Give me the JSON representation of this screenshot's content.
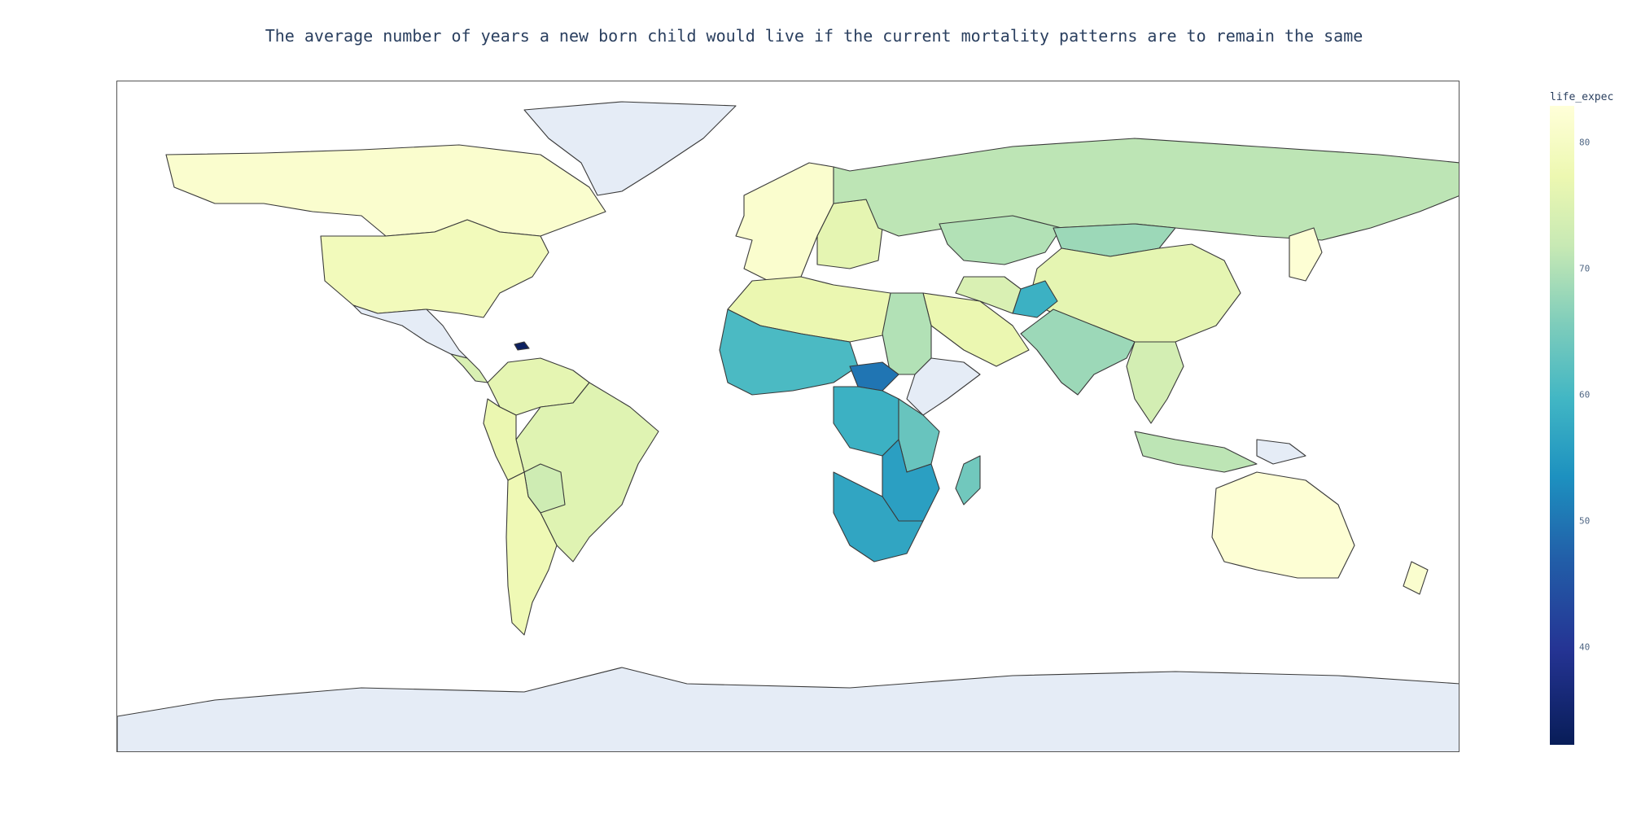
{
  "title": "The average number of years a new born child would live if the current mortality patterns are to remain the same",
  "colorbar": {
    "title": "life_expec",
    "ticks": [
      "80",
      "70",
      "60",
      "50",
      "40"
    ],
    "colorscale": [
      "#081d58",
      "#253494",
      "#225ea8",
      "#1d91c0",
      "#41b6c4",
      "#7fcdbb",
      "#c7e9b4",
      "#edf8b1",
      "#ffffd9"
    ]
  },
  "colors": {
    "no_data": "#e5ecf6",
    "border": "#3a3a3a",
    "frame": "#555555"
  },
  "chart_data": {
    "type": "choropleth",
    "variable": "life_expec",
    "color_range": [
      31.1,
      82.8
    ],
    "regions": [
      {
        "name": "Canada",
        "value": 81
      },
      {
        "name": "USA",
        "value": 78
      },
      {
        "name": "Greenland",
        "value": null
      },
      {
        "name": "Mexico",
        "value": null
      },
      {
        "name": "Haiti",
        "value": 32
      },
      {
        "name": "Central America",
        "value": 73
      },
      {
        "name": "Colombia/Venezuela",
        "value": 75
      },
      {
        "name": "Brazil",
        "value": 74
      },
      {
        "name": "Peru/Ecuador",
        "value": 76
      },
      {
        "name": "Bolivia",
        "value": 71
      },
      {
        "name": "Argentina/Chile",
        "value": 77
      },
      {
        "name": "Western Europe",
        "value": 81
      },
      {
        "name": "Eastern Europe",
        "value": 75
      },
      {
        "name": "Russia",
        "value": 69
      },
      {
        "name": "Kazakhstan",
        "value": 68
      },
      {
        "name": "Mongolia",
        "value": 66
      },
      {
        "name": "China",
        "value": 75
      },
      {
        "name": "Japan",
        "value": 82
      },
      {
        "name": "India",
        "value": 66
      },
      {
        "name": "Afghanistan",
        "value": 56
      },
      {
        "name": "Middle East",
        "value": 76
      },
      {
        "name": "Iraq/Iran",
        "value": 73
      },
      {
        "name": "North Africa",
        "value": 76
      },
      {
        "name": "Egypt/Sudan",
        "value": 68
      },
      {
        "name": "Somalia/Ethiopia",
        "value": null
      },
      {
        "name": "West Africa",
        "value": 58
      },
      {
        "name": "Central African Republic",
        "value": 47
      },
      {
        "name": "Congo",
        "value": 56
      },
      {
        "name": "East Africa",
        "value": 61
      },
      {
        "name": "Zambia/Mozambique",
        "value": 53
      },
      {
        "name": "Southern Africa",
        "value": 54
      },
      {
        "name": "Madagascar",
        "value": 62
      },
      {
        "name": "Southeast Asia",
        "value": 72
      },
      {
        "name": "Indonesia",
        "value": 69
      },
      {
        "name": "Papua New Guinea",
        "value": null
      },
      {
        "name": "Australia",
        "value": 82
      },
      {
        "name": "New Zealand",
        "value": 81
      },
      {
        "name": "Antarctica",
        "value": null
      }
    ]
  }
}
